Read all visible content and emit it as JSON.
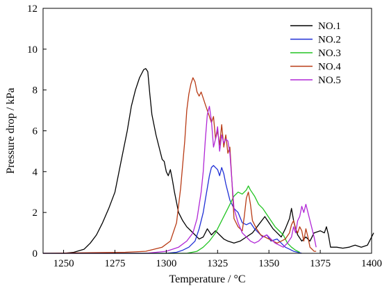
{
  "chart_data": {
    "type": "line",
    "xlabel": "Temperature / °C",
    "ylabel": "Pressure drop / kPa",
    "xlim": [
      1240,
      1400
    ],
    "ylim": [
      0,
      12
    ],
    "xticks": [
      1250,
      1275,
      1300,
      1325,
      1350,
      1375,
      1400
    ],
    "yticks": [
      0,
      2,
      4,
      6,
      8,
      10,
      12
    ],
    "grid": false,
    "legend_position": "top-right",
    "series": [
      {
        "name": "NO.1",
        "color": "#000000",
        "x": [
          1250,
          1255,
          1260,
          1263,
          1266,
          1269,
          1272,
          1275,
          1278,
          1281,
          1283,
          1285,
          1287,
          1289,
          1290,
          1291,
          1292,
          1293,
          1295,
          1297,
          1298,
          1299,
          1300,
          1301,
          1302,
          1303,
          1304,
          1306,
          1308,
          1310,
          1312,
          1314,
          1316,
          1318,
          1320,
          1322,
          1324,
          1326,
          1328,
          1330,
          1333,
          1336,
          1339,
          1342,
          1345,
          1348,
          1350,
          1352,
          1354,
          1356,
          1358,
          1360,
          1361,
          1362,
          1363,
          1364,
          1366,
          1368,
          1370,
          1372,
          1375,
          1377,
          1378,
          1379,
          1380,
          1383,
          1386,
          1389,
          1392,
          1395,
          1398,
          1401
        ],
        "values": [
          0.0,
          0.05,
          0.2,
          0.5,
          0.9,
          1.5,
          2.2,
          3.0,
          4.5,
          6.0,
          7.2,
          8.0,
          8.6,
          9.0,
          9.05,
          8.9,
          7.8,
          6.8,
          5.8,
          5.0,
          4.6,
          4.5,
          4.0,
          3.8,
          4.1,
          3.6,
          3.0,
          2.0,
          1.6,
          1.3,
          1.1,
          0.9,
          0.7,
          0.8,
          1.2,
          0.9,
          1.1,
          0.9,
          0.7,
          0.6,
          0.5,
          0.6,
          0.8,
          1.0,
          1.4,
          1.8,
          1.5,
          1.2,
          1.0,
          0.8,
          1.2,
          1.7,
          2.2,
          1.6,
          1.2,
          0.9,
          0.6,
          0.8,
          0.6,
          1.0,
          1.1,
          1.0,
          1.3,
          0.9,
          0.3,
          0.3,
          0.25,
          0.3,
          0.4,
          0.3,
          0.4,
          1.0
        ]
      },
      {
        "name": "NO.2",
        "color": "#1f2fd6",
        "x": [
          1240,
          1300,
          1305,
          1308,
          1311,
          1314,
          1316,
          1318,
          1319,
          1320,
          1321,
          1322,
          1323,
          1324,
          1325,
          1326,
          1327,
          1328,
          1329,
          1330,
          1331,
          1333,
          1335,
          1337,
          1339,
          1341,
          1343,
          1345,
          1347,
          1349,
          1351,
          1354,
          1356,
          1358,
          1360,
          1362,
          1364,
          1366
        ],
        "values": [
          0.0,
          0.0,
          0.05,
          0.15,
          0.3,
          0.6,
          1.2,
          2.0,
          2.6,
          3.2,
          3.8,
          4.2,
          4.3,
          4.2,
          4.1,
          3.8,
          4.2,
          3.9,
          3.4,
          3.0,
          2.6,
          2.2,
          2.0,
          1.5,
          1.4,
          1.5,
          1.2,
          1.0,
          0.8,
          0.9,
          0.6,
          0.7,
          0.5,
          0.3,
          0.2,
          0.1,
          0.05,
          0.0
        ]
      },
      {
        "name": "NO.3",
        "color": "#22c422",
        "x": [
          1240,
          1310,
          1315,
          1318,
          1321,
          1324,
          1327,
          1330,
          1333,
          1335,
          1337,
          1339,
          1340,
          1341,
          1343,
          1345,
          1347,
          1349,
          1351,
          1353,
          1355,
          1357,
          1359,
          1361,
          1363,
          1365
        ],
        "values": [
          0.0,
          0.0,
          0.1,
          0.3,
          0.6,
          1.0,
          1.6,
          2.2,
          2.8,
          3.0,
          2.9,
          3.1,
          3.3,
          3.1,
          2.8,
          2.4,
          2.2,
          1.9,
          1.6,
          1.3,
          1.1,
          0.9,
          0.5,
          0.3,
          0.15,
          0.05
        ]
      },
      {
        "name": "NO.4",
        "color": "#b83a14",
        "x": [
          1240,
          1280,
          1290,
          1298,
          1302,
          1305,
          1307,
          1309,
          1310,
          1311,
          1312,
          1313,
          1314,
          1315,
          1316,
          1317,
          1318,
          1319,
          1320,
          1321,
          1322,
          1323,
          1324,
          1325,
          1326,
          1327,
          1328,
          1329,
          1330,
          1331,
          1332,
          1333,
          1335,
          1337,
          1338,
          1339,
          1340,
          1341,
          1342,
          1344,
          1346,
          1348,
          1350,
          1352,
          1354,
          1356,
          1358,
          1360,
          1361,
          1362,
          1363,
          1364,
          1365,
          1366,
          1367,
          1368,
          1369,
          1370,
          1371,
          1372,
          1373
        ],
        "values": [
          0.0,
          0.05,
          0.1,
          0.3,
          0.6,
          1.5,
          3.2,
          5.5,
          7.0,
          7.8,
          8.3,
          8.6,
          8.4,
          7.9,
          7.7,
          7.9,
          7.6,
          7.3,
          7.0,
          6.7,
          6.4,
          6.7,
          5.6,
          6.0,
          5.3,
          6.3,
          5.2,
          5.8,
          4.9,
          5.2,
          3.5,
          1.7,
          1.3,
          1.1,
          1.8,
          2.7,
          3.0,
          2.4,
          1.6,
          1.2,
          0.9,
          0.8,
          0.7,
          0.6,
          0.5,
          0.6,
          0.7,
          1.0,
          1.4,
          1.6,
          1.2,
          1.0,
          1.3,
          1.1,
          0.6,
          1.2,
          0.8,
          0.3,
          0.2,
          0.1,
          0.1
        ]
      },
      {
        "name": "NO.5",
        "color": "#b026d6",
        "x": [
          1240,
          1290,
          1300,
          1306,
          1310,
          1313,
          1315,
          1317,
          1318,
          1319,
          1320,
          1321,
          1322,
          1323,
          1324,
          1325,
          1326,
          1327,
          1328,
          1329,
          1330,
          1331,
          1332,
          1333,
          1335,
          1337,
          1339,
          1341,
          1343,
          1345,
          1347,
          1349,
          1351,
          1353,
          1355,
          1357,
          1359,
          1361,
          1362,
          1363,
          1364,
          1365,
          1366,
          1367,
          1368,
          1369,
          1370,
          1371,
          1372,
          1373
        ],
        "values": [
          0.0,
          0.0,
          0.1,
          0.3,
          0.6,
          1.0,
          1.7,
          3.0,
          4.0,
          5.5,
          6.8,
          7.2,
          6.5,
          5.2,
          5.6,
          6.2,
          5.0,
          5.8,
          5.4,
          5.6,
          5.5,
          4.9,
          3.5,
          2.2,
          1.5,
          1.0,
          0.8,
          0.6,
          0.5,
          0.6,
          0.8,
          0.9,
          0.7,
          0.5,
          0.4,
          0.3,
          0.5,
          0.8,
          1.3,
          1.0,
          1.6,
          1.8,
          2.3,
          2.0,
          2.4,
          2.0,
          1.6,
          1.2,
          0.8,
          0.3
        ]
      }
    ]
  }
}
